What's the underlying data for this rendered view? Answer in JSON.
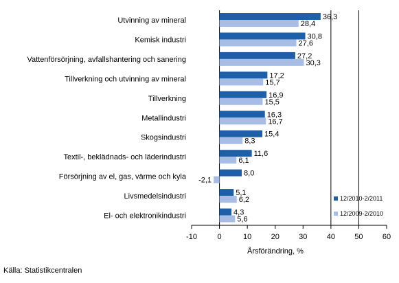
{
  "chart_data": {
    "type": "bar",
    "orientation": "horizontal",
    "categories": [
      "Utvinning av mineral",
      "Kemisk industri",
      "Vattenförsörjning, avfallshantering och sanering",
      "Tillverkning och utvinning av mineral",
      "Tillverkning",
      "Metallindustri",
      "Skogsindustri",
      "Textil-, beklädnads- och läderindustri",
      "Försörjning av el, gas, värme och kyla",
      "Livsmedelsindustri",
      "El- och elektronikindustri"
    ],
    "series": [
      {
        "name": "12/2010-2/2011",
        "color": "#1f5fa8",
        "values": [
          36.3,
          30.8,
          27.2,
          17.2,
          16.9,
          16.3,
          15.4,
          11.6,
          8.0,
          5.1,
          4.3
        ],
        "labels": [
          "36,3",
          "30,8",
          "27,2",
          "17,2",
          "16,9",
          "16,3",
          "15,4",
          "11,6",
          "8,0",
          "5,1",
          "4,3"
        ]
      },
      {
        "name": "12/2009-2/2010",
        "color": "#a8bde6",
        "values": [
          28.4,
          27.6,
          30.3,
          15.7,
          15.5,
          16.7,
          8.3,
          6.1,
          -2.1,
          6.2,
          5.6
        ],
        "labels": [
          "28,4",
          "27,6",
          "30,3",
          "15,7",
          "15,5",
          "16,7",
          "8,3",
          "6,1",
          "-2,1",
          "6,2",
          "5,6"
        ]
      }
    ],
    "xlabel": "Årsförändring, %",
    "xlim": [
      -10,
      60
    ],
    "xticks": [
      -10,
      0,
      10,
      20,
      30,
      40,
      50,
      60
    ],
    "grid": true,
    "legend_position": "bottom-right"
  },
  "source": "Källa: Statistikcentralen"
}
